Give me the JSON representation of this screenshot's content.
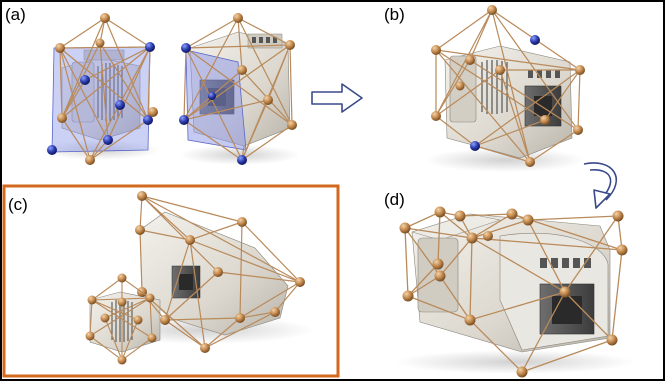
{
  "figure": {
    "panels": [
      {
        "id": "a",
        "label": "(a)"
      },
      {
        "id": "b",
        "label": "(b)"
      },
      {
        "id": "c",
        "label": "(c)"
      },
      {
        "id": "d",
        "label": "(d)"
      }
    ],
    "colors": {
      "frame": "#000000",
      "highlight_frame": "#d2691e",
      "lattice_edge": "#b98a5a",
      "node": "#c48a4f",
      "highlight_node": "#2e3fb0",
      "cut_plane": "#8c96e8",
      "part_body": "#dcd8cf",
      "arrow": "#3a4a8a"
    },
    "arrows": [
      {
        "name": "arrow-a-to-b",
        "direction": "right"
      },
      {
        "name": "arrow-b-to-d",
        "direction": "curved-down"
      }
    ]
  }
}
